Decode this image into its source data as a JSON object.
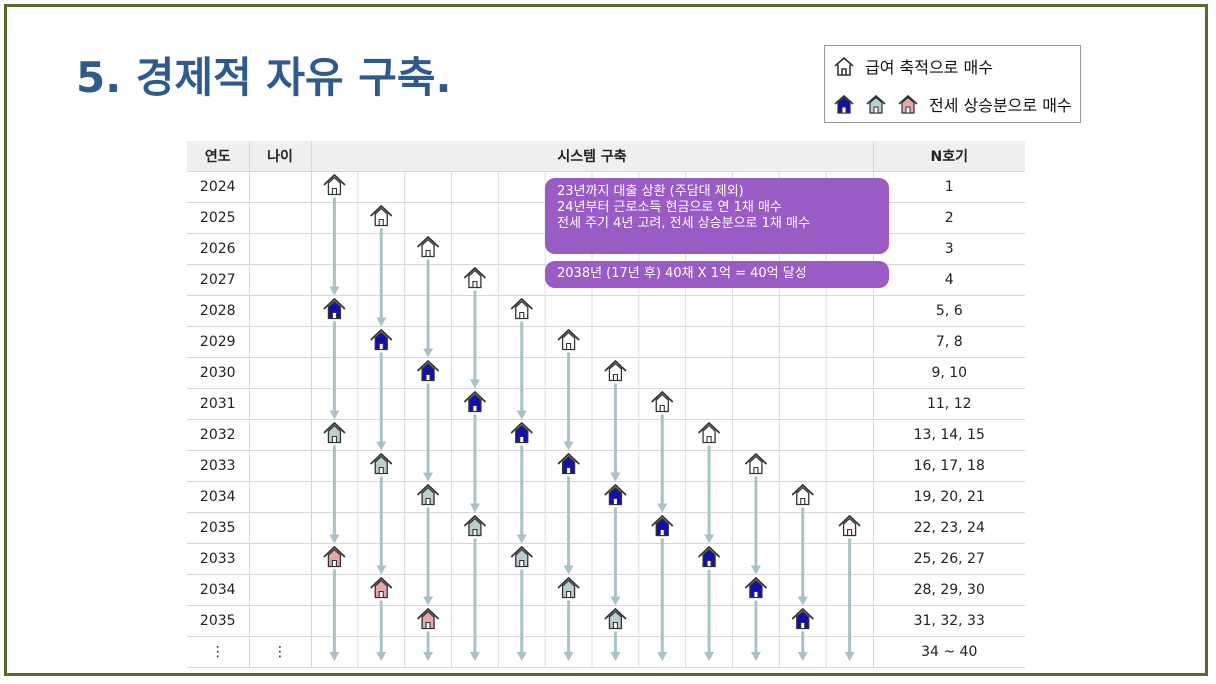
{
  "title": "5. 경제적 자유 구축.",
  "legend": {
    "row1_label": "급여 축적으로 매수",
    "row2_label": "전세 상승분으로 매수"
  },
  "table": {
    "headers": {
      "year": "연도",
      "age": "나이",
      "system": "시스템 구축",
      "nho": "N호기"
    },
    "rows": [
      {
        "year": "2024",
        "nho": "1"
      },
      {
        "year": "2025",
        "nho": "2"
      },
      {
        "year": "2026",
        "nho": "3"
      },
      {
        "year": "2027",
        "nho": "4"
      },
      {
        "year": "2028",
        "nho": "5, 6"
      },
      {
        "year": "2029",
        "nho": "7, 8"
      },
      {
        "year": "2030",
        "nho": "9, 10"
      },
      {
        "year": "2031",
        "nho": "11, 12"
      },
      {
        "year": "2032",
        "nho": "13, 14, 15"
      },
      {
        "year": "2033",
        "nho": "16, 17, 18"
      },
      {
        "year": "2034",
        "nho": "19, 20, 21"
      },
      {
        "year": "2035",
        "nho": "22, 23, 24"
      },
      {
        "year": "2033",
        "nho": "25, 26, 27"
      },
      {
        "year": "2034",
        "nho": "28, 29, 30"
      },
      {
        "year": "2035",
        "nho": "31, 32, 33"
      },
      {
        "year": "⋮",
        "age": "⋮",
        "nho": "34 ~ 40"
      }
    ]
  },
  "notes": {
    "note1": [
      "23년까지 대출 상환 (주담대 제외)",
      "24년부터 근로소득 현금으로 연 1채 매수",
      "전세 주기 4년 고려, 전세 상승분으로 1채 매수"
    ],
    "note2": "2038년 (17년  후) 40채 X 1억 = 40억 달성"
  },
  "colors": {
    "title": "#2f5a8c",
    "frame": "#556b2f",
    "house_outline": "#333333",
    "house_blue": "#1010b0",
    "house_gray": "#b9cfd0",
    "house_pink": "#e7a7a9",
    "arrow": "#a9c2c3",
    "note_bg": "#9a5bc4"
  },
  "icons": {
    "legend_salary": "house-outline-icon",
    "legend_rental": [
      "house-blue-icon",
      "house-gray-icon",
      "house-pink-icon"
    ]
  },
  "timeline": {
    "columns": [
      {
        "start_year_index": 0
      },
      {
        "start_year_index": 1
      },
      {
        "start_year_index": 2
      },
      {
        "start_year_index": 3
      },
      {
        "start_year_index": 4
      },
      {
        "start_year_index": 5
      },
      {
        "start_year_index": 6
      },
      {
        "start_year_index": 7
      },
      {
        "start_year_index": 8
      },
      {
        "start_year_index": 9
      },
      {
        "start_year_index": 10
      },
      {
        "start_year_index": 11
      }
    ],
    "cycle_sequence": [
      "house-outline-icon",
      "house-blue-icon",
      "house-gray-icon",
      "house-pink-icon"
    ],
    "cycle_years": 4
  }
}
